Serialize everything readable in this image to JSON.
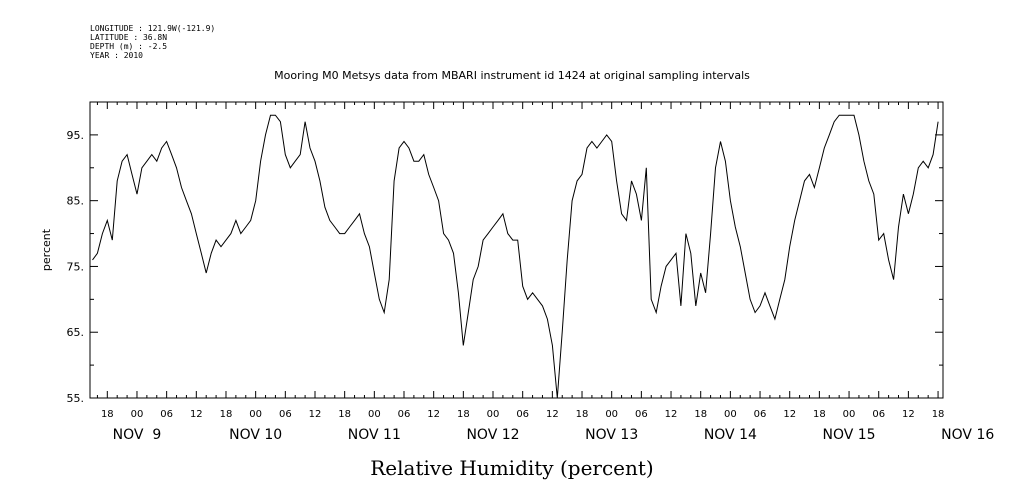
{
  "meta": {
    "longitude": "LONGITUDE : 121.9W(-121.9)",
    "latitude": "LATITUDE : 36.8N",
    "depth": "DEPTH (m) : -2.5",
    "year": "YEAR : 2010"
  },
  "chart_data": {
    "type": "line",
    "title": "Mooring M0 Metsys data from MBARI instrument id 1424 at original sampling intervals",
    "xlabel": "Relative Humidity (percent)",
    "ylabel": "percent",
    "ylim": [
      55,
      100
    ],
    "yticks": [
      55,
      65,
      75,
      85,
      95
    ],
    "xlim": [
      -9.5,
      163
    ],
    "hour_ticks": [
      "06",
      "12",
      "18",
      "00"
    ],
    "day_labels": [
      {
        "label": "NOV  9",
        "hour": 0
      },
      {
        "label": "NOV 10",
        "hour": 24
      },
      {
        "label": "NOV 11",
        "hour": 48
      },
      {
        "label": "NOV 12",
        "hour": 72
      },
      {
        "label": "NOV 13",
        "hour": 96
      },
      {
        "label": "NOV 14",
        "hour": 120
      },
      {
        "label": "NOV 15",
        "hour": 144
      },
      {
        "label": "NOV 16",
        "hour": 168
      }
    ],
    "grid": false,
    "series": [
      {
        "x": [
          -9,
          -8,
          -7,
          -6,
          -5,
          -4,
          -3,
          -2,
          -1,
          0,
          1,
          2,
          3,
          4,
          5,
          6,
          7,
          8,
          9,
          10,
          11,
          12,
          13,
          14,
          15,
          16,
          17,
          18,
          19,
          20,
          21,
          22,
          23,
          24,
          25,
          26,
          27,
          28,
          29,
          30,
          31,
          32,
          33,
          34,
          35,
          36,
          37,
          38,
          39,
          40,
          41,
          42,
          43,
          44,
          45,
          46,
          47,
          48,
          49,
          50,
          51,
          52,
          53,
          54,
          55,
          56,
          57,
          58,
          59,
          60,
          61,
          62,
          63,
          64,
          65,
          66,
          67,
          68,
          69,
          70,
          71,
          72,
          73,
          74,
          75,
          76,
          77,
          78,
          79,
          80,
          81,
          82,
          83,
          84,
          85,
          86,
          87,
          88,
          89,
          90,
          91,
          92,
          93,
          94,
          95,
          96,
          97,
          98,
          99,
          100,
          101,
          102,
          103,
          104,
          105,
          106,
          107,
          108,
          109,
          110,
          111,
          112,
          113,
          114,
          115,
          116,
          117,
          118,
          119,
          120,
          121,
          122,
          123,
          124,
          125,
          126,
          127,
          128,
          129,
          130,
          131,
          132,
          133,
          134,
          135,
          136,
          137,
          138,
          139,
          140,
          141,
          142,
          143,
          144,
          145,
          146,
          147,
          148,
          149,
          150,
          151,
          152,
          153,
          154,
          155,
          156,
          157,
          158,
          159,
          160,
          161,
          162
        ],
        "y": [
          76,
          77,
          80,
          82,
          79,
          88,
          91,
          92,
          89,
          86,
          90,
          91,
          92,
          91,
          93,
          94,
          92,
          90,
          87,
          85,
          83,
          80,
          77,
          74,
          77,
          79,
          78,
          79,
          80,
          82,
          80,
          81,
          82,
          85,
          91,
          95,
          98,
          98,
          97,
          92,
          90,
          91,
          92,
          97,
          93,
          91,
          88,
          84,
          82,
          81,
          80,
          80,
          81,
          82,
          83,
          80,
          78,
          74,
          70,
          68,
          73,
          88,
          93,
          94,
          93,
          91,
          91,
          92,
          89,
          87,
          85,
          80,
          79,
          77,
          71,
          63,
          68,
          73,
          75,
          79,
          80,
          81,
          82,
          83,
          80,
          79,
          79,
          72,
          70,
          71,
          70,
          69,
          67,
          63,
          55,
          65,
          76,
          85,
          88,
          89,
          93,
          94,
          93,
          94,
          95,
          94,
          88,
          83,
          82,
          88,
          86,
          82,
          90,
          70,
          68,
          72,
          75,
          76,
          77,
          69,
          80,
          77,
          69,
          74,
          71,
          80,
          90,
          94,
          91,
          85,
          81,
          78,
          74,
          70,
          68,
          69,
          71,
          69,
          67,
          70,
          73,
          78,
          82,
          85,
          88,
          89,
          87,
          90,
          93,
          95,
          97,
          98,
          98,
          98,
          98,
          95,
          91,
          88,
          86,
          79,
          80,
          76,
          73,
          81,
          86,
          83,
          86,
          90,
          91,
          90,
          92,
          97
        ]
      }
    ]
  }
}
